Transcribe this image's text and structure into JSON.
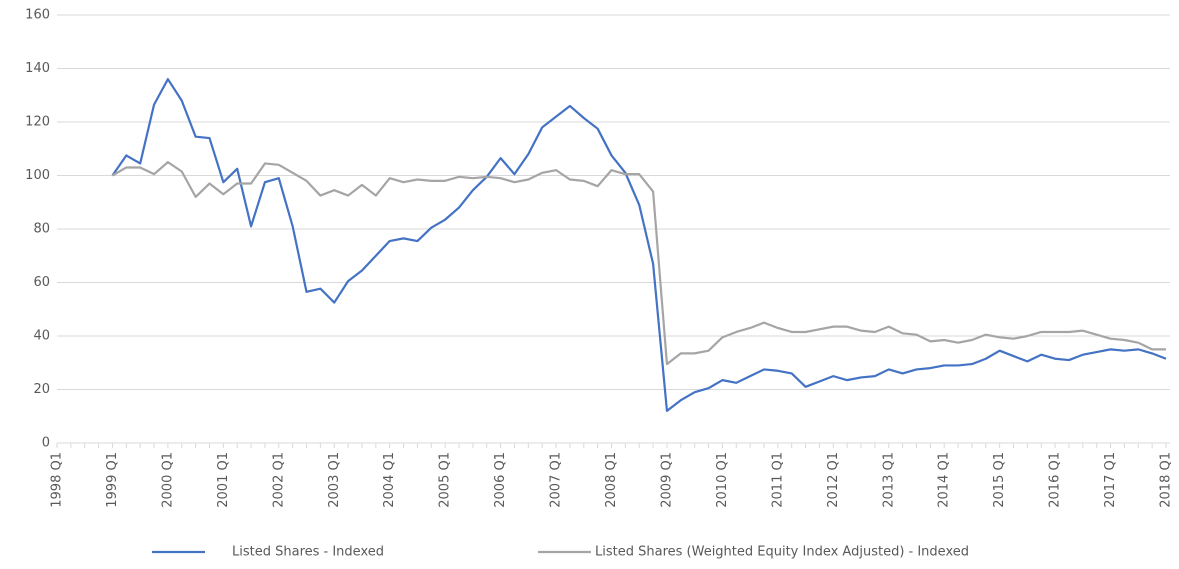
{
  "chart_data": {
    "type": "line",
    "categories": [
      "1998 Q1",
      null,
      null,
      null,
      "1999 Q1",
      null,
      null,
      null,
      "2000 Q1",
      null,
      null,
      null,
      "2001 Q1",
      null,
      null,
      null,
      "2002 Q1",
      null,
      null,
      null,
      "2003 Q1",
      null,
      null,
      null,
      "2004 Q1",
      null,
      null,
      null,
      "2005 Q1",
      null,
      null,
      null,
      "2006 Q1",
      null,
      null,
      null,
      "2007 Q1",
      null,
      null,
      null,
      "2008 Q1",
      null,
      null,
      null,
      "2009 Q1",
      null,
      null,
      null,
      "2010 Q1",
      null,
      null,
      null,
      "2011 Q1",
      null,
      null,
      null,
      "2012 Q1",
      null,
      null,
      null,
      "2013 Q1",
      null,
      null,
      null,
      "2014 Q1",
      null,
      null,
      null,
      "2015 Q1",
      null,
      null,
      null,
      "2016 Q1",
      null,
      null,
      null,
      "2017 Q1",
      null,
      null,
      null,
      "2018 Q1"
    ],
    "series": [
      {
        "name": "Listed Shares - Indexed",
        "color": "#4472c4",
        "values": [
          null,
          null,
          null,
          null,
          100,
          107.5,
          104.5,
          126.5,
          136,
          128,
          114.5,
          114,
          97.5,
          102.5,
          81,
          97.5,
          99,
          81,
          56.5,
          57.7,
          52.5,
          60.5,
          64.5,
          70,
          75.5,
          76.5,
          75.5,
          80.5,
          83.5,
          88,
          94.5,
          99.5,
          106.5,
          100.5,
          108,
          118,
          122,
          126,
          121.5,
          117.5,
          107.5,
          101,
          89,
          67,
          12,
          16,
          19,
          20.5,
          23.5,
          22.5,
          25,
          27.5,
          27,
          26,
          21,
          23,
          25,
          23.5,
          24.5,
          25,
          27.5,
          26,
          27.5,
          28,
          29,
          29,
          29.5,
          31.5,
          34.5,
          32.5,
          30.5,
          33,
          31.5,
          31,
          33,
          34,
          35,
          34.5,
          35,
          33.5,
          31.5
        ]
      },
      {
        "name": "Listed Shares (Weighted Equity Index Adjusted) - Indexed",
        "color": "#a5a5a5",
        "values": [
          null,
          null,
          null,
          null,
          100,
          103,
          103,
          100.5,
          105,
          101.5,
          92,
          97,
          93,
          97,
          97,
          104.5,
          104,
          101,
          98,
          92.5,
          94.5,
          92.5,
          96.5,
          92.5,
          99,
          97.5,
          98.5,
          98,
          98,
          99.5,
          99,
          99.5,
          99,
          97.5,
          98.5,
          101,
          102,
          98.5,
          98,
          96,
          102,
          100.5,
          100.5,
          94,
          29.5,
          33.5,
          33.5,
          34.5,
          39.5,
          41.5,
          43,
          45,
          43,
          41.5,
          41.5,
          42.5,
          43.5,
          43.5,
          42,
          41.5,
          43.5,
          41,
          40.5,
          38,
          38.5,
          37.5,
          38.5,
          40.5,
          39.5,
          39,
          40,
          41.5,
          41.5,
          41.5,
          42,
          40.5,
          39,
          38.5,
          37.5,
          35,
          35
        ]
      }
    ],
    "ylim": [
      0,
      160
    ],
    "yticks": [
      0,
      20,
      40,
      60,
      80,
      100,
      120,
      140,
      160
    ],
    "grid": true
  }
}
